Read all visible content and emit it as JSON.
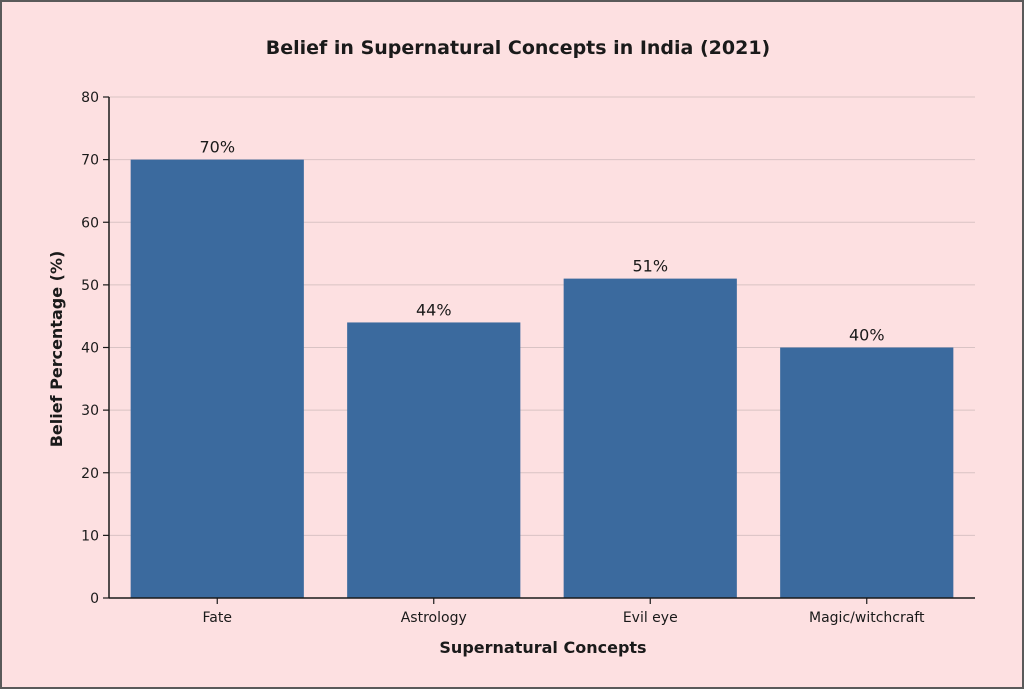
{
  "chart_data": {
    "type": "bar",
    "title": "Belief in Supernatural Concepts in India (2021)",
    "xlabel": "Supernatural Concepts",
    "ylabel": "Belief Percentage (%)",
    "categories": [
      "Fate",
      "Astrology",
      "Evil eye",
      "Magic/witchcraft"
    ],
    "values": [
      70,
      44,
      51,
      40
    ],
    "data_labels": [
      "70%",
      "44%",
      "51%",
      "40%"
    ],
    "ylim": [
      0,
      80
    ],
    "yticks": [
      0,
      10,
      20,
      30,
      40,
      50,
      60,
      70,
      80
    ],
    "grid": "horizontal",
    "bar_color": "#3b6a9e",
    "background_color": "#fde0e1"
  }
}
